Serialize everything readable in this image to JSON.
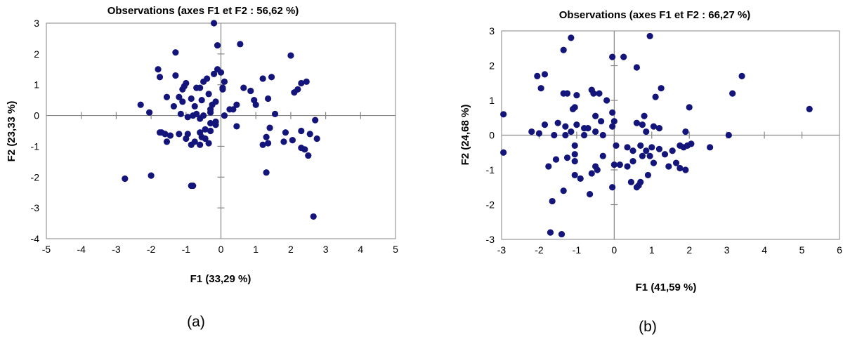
{
  "figures": {
    "a": {
      "caption": "(a)"
    },
    "b": {
      "caption": "(b)"
    }
  },
  "chart_data": [
    {
      "type": "scatter",
      "title": "Observations (axes F1 et F2 : 56,62 %)",
      "xlabel": "F1 (33,29 %)",
      "ylabel": "F2 (23,33 %)",
      "xlim": [
        -5,
        5
      ],
      "ylim": [
        -4,
        3
      ],
      "xticks": [
        -5,
        -4,
        -3,
        -2,
        -1,
        0,
        1,
        2,
        3,
        4,
        5
      ],
      "yticks": [
        -4,
        -3,
        -2,
        -1,
        0,
        1,
        2,
        3
      ],
      "marker_color": "#14157a",
      "x": [
        -0.2,
        -1.3,
        0.55,
        -0.1,
        2.0,
        -1.8,
        -1.75,
        -1.3,
        -0.2,
        -0.1,
        0.0,
        -0.4,
        -1.0,
        -0.5,
        1.2,
        1.45,
        2.45,
        2.3,
        0.1,
        0.05,
        0.25,
        0.65,
        0.85,
        2.2,
        2.1,
        -1.1,
        -1.05,
        -1.2,
        -0.85,
        -0.6,
        -0.7,
        -0.35,
        -0.55,
        -0.15,
        -2.3,
        -1.55,
        -1.1,
        -0.75,
        -0.25,
        0.05,
        0.45,
        0.95,
        1.0,
        1.35,
        -0.3,
        -0.8,
        -1.15,
        -0.5,
        -0.7,
        -0.3,
        0.1,
        0.35,
        1.55,
        -2.05,
        -1.35,
        -0.95,
        -0.6,
        -0.15,
        -0.3,
        -1.75,
        -1.7,
        -1.6,
        -1.45,
        -1.2,
        -0.95,
        -0.6,
        -0.45,
        -0.3,
        -0.55,
        -1.55,
        -0.75,
        -0.45,
        -0.15,
        -1.0,
        -0.85,
        -0.6,
        -0.35,
        0.45,
        1.3,
        1.4,
        1.85,
        2.3,
        2.55,
        2.75,
        2.7,
        1.2,
        1.35,
        1.8,
        2.05,
        2.3,
        2.5,
        2.4,
        1.3,
        -2.75,
        -2.0,
        -0.85,
        -0.8,
        2.65
      ],
      "y": [
        3.0,
        2.05,
        2.32,
        2.28,
        1.95,
        1.5,
        1.25,
        1.3,
        1.35,
        1.5,
        1.4,
        1.2,
        1.05,
        1.1,
        1.2,
        1.25,
        1.1,
        1.05,
        1.1,
        0.9,
        0.2,
        0.9,
        0.8,
        0.85,
        0.75,
        0.85,
        0.95,
        0.6,
        0.55,
        0.9,
        0.9,
        0.7,
        0.5,
        0.45,
        0.35,
        0.6,
        0.45,
        0.3,
        0.35,
        0.85,
        0.35,
        0.5,
        0.35,
        0.55,
        0.2,
        0.0,
        0.05,
        0.0,
        0.05,
        0.1,
        0.0,
        0.2,
        0.05,
        0.1,
        0.3,
        -0.05,
        -0.1,
        -0.2,
        -0.25,
        -0.55,
        -0.55,
        -0.6,
        -0.65,
        -0.6,
        -0.6,
        -0.55,
        -0.45,
        -0.5,
        -0.7,
        -0.85,
        -0.85,
        -0.75,
        -0.3,
        -0.75,
        -0.95,
        -0.95,
        -0.9,
        -0.35,
        -0.7,
        -0.4,
        -0.55,
        -0.5,
        -0.6,
        -0.75,
        -0.15,
        -0.95,
        -0.9,
        -0.85,
        -0.8,
        -1.05,
        -1.3,
        -1.1,
        -1.85,
        -2.05,
        -1.95,
        -2.28,
        -2.28,
        -3.28
      ]
    },
    {
      "type": "scatter",
      "title": "Observations (axes F1 et F2 : 66,27 %)",
      "xlabel": "F1 (41,59 %)",
      "ylabel": "F2 (24,68 %)",
      "xlim": [
        -3,
        6
      ],
      "ylim": [
        -3,
        3
      ],
      "xticks": [
        -3,
        -2,
        -1,
        0,
        1,
        2,
        3,
        4,
        5,
        6
      ],
      "yticks": [
        -3,
        -2,
        -1,
        0,
        1,
        2,
        3
      ],
      "marker_color": "#14157a",
      "x": [
        -1.15,
        -1.35,
        0.95,
        -0.05,
        0.25,
        0.6,
        -2.05,
        -1.85,
        -1.95,
        -1.35,
        -1.25,
        -1.0,
        -0.6,
        -0.55,
        -0.4,
        -0.2,
        -1.1,
        -1.05,
        3.4,
        1.1,
        3.15,
        1.25,
        1.2,
        5.2,
        -2.95,
        -1.5,
        -1.3,
        -1.15,
        -1.0,
        -0.8,
        -0.7,
        -0.5,
        -0.35,
        -0.05,
        0.0,
        0.6,
        0.75,
        0.8,
        0.85,
        1.05,
        1.9,
        2.0,
        3.05,
        -2.2,
        -2.0,
        -1.85,
        -1.6,
        -1.3,
        -1.05,
        -0.8,
        -0.5,
        -0.3,
        -0.05,
        0.05,
        0.35,
        0.5,
        0.7,
        0.85,
        1.0,
        1.2,
        1.55,
        1.75,
        1.85,
        1.95,
        2.05,
        2.55,
        -2.95,
        -1.25,
        -1.05,
        -1.55,
        -1.75,
        -1.05,
        -0.5,
        -0.3,
        0.0,
        0.15,
        0.35,
        0.5,
        0.75,
        0.95,
        1.05,
        1.35,
        1.45,
        1.65,
        1.75,
        1.9,
        0.9,
        0.7,
        -0.45,
        -0.6,
        0.65,
        0.6,
        0.45,
        -0.9,
        -1.05,
        -1.65,
        -1.35,
        -0.65,
        -0.05,
        -1.7,
        -1.4
      ],
      "y": [
        2.8,
        2.45,
        2.85,
        2.25,
        2.25,
        1.95,
        1.7,
        1.75,
        1.35,
        1.2,
        1.2,
        1.15,
        1.3,
        1.2,
        1.2,
        1.0,
        0.75,
        0.8,
        1.7,
        1.1,
        1.2,
        1.35,
        0.2,
        0.75,
        0.6,
        0.35,
        0.25,
        0.1,
        0.3,
        0.2,
        0.2,
        0.55,
        0.4,
        0.65,
        0.4,
        0.35,
        0.3,
        0.55,
        0.1,
        0.25,
        0.1,
        0.8,
        0.0,
        0.1,
        0.05,
        0.3,
        0.0,
        0.0,
        -0.3,
        0.0,
        0.1,
        0.0,
        0.25,
        -0.3,
        -0.35,
        -0.45,
        -0.3,
        -0.45,
        -0.35,
        -0.4,
        -0.45,
        -0.3,
        -0.35,
        -0.3,
        -0.25,
        -0.35,
        -0.5,
        -0.65,
        -0.75,
        -0.7,
        -0.9,
        -0.55,
        -0.9,
        -0.6,
        -0.85,
        -0.85,
        -0.9,
        -0.75,
        -0.6,
        -0.6,
        -0.8,
        -0.55,
        -0.9,
        -0.8,
        -0.95,
        -1.0,
        -1.15,
        -1.35,
        -1.0,
        -1.1,
        -1.45,
        -1.5,
        -1.35,
        -1.25,
        -1.15,
        -1.9,
        -1.6,
        -1.7,
        -1.5,
        -2.8,
        -2.85
      ]
    }
  ]
}
